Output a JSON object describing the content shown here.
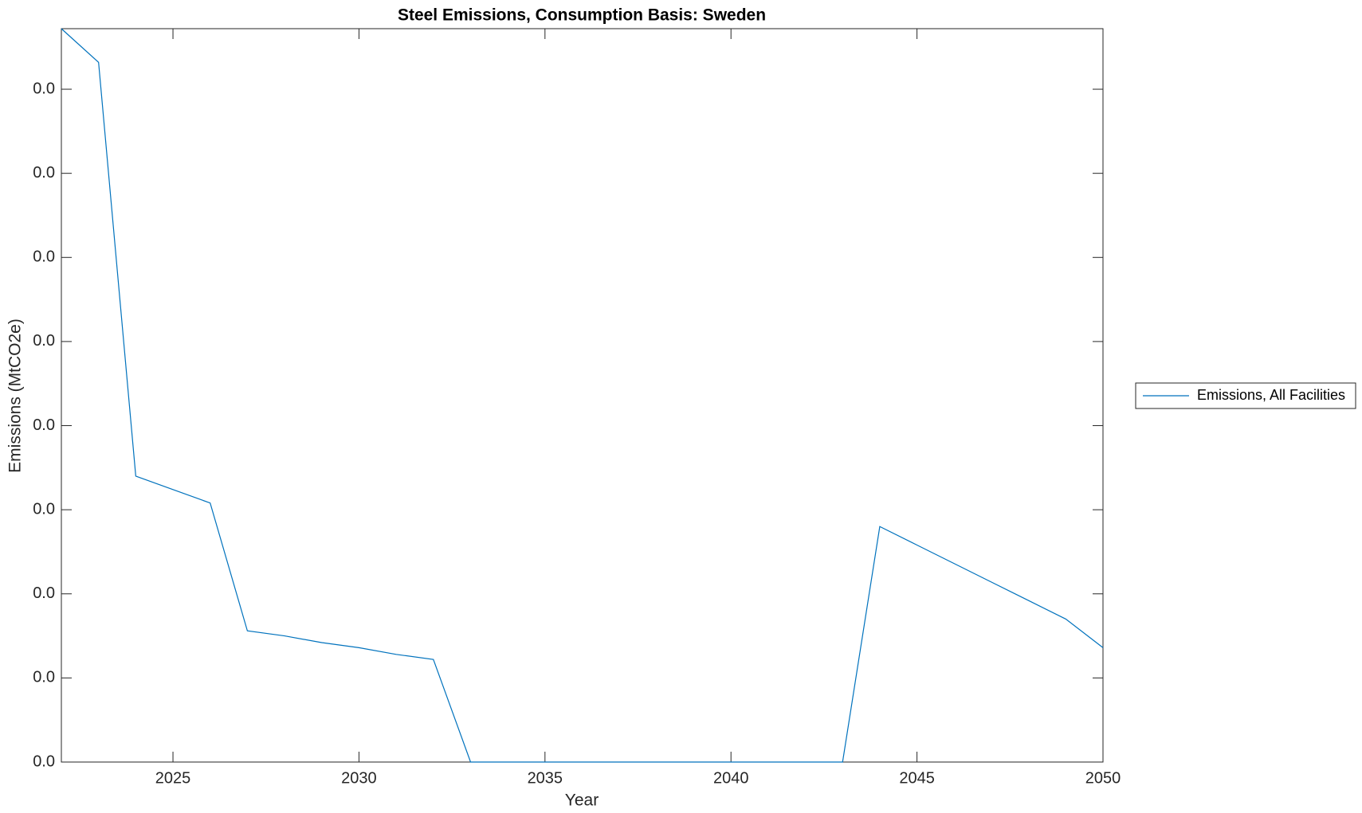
{
  "chart_data": {
    "type": "line",
    "title": "Steel Emissions, Consumption Basis: Sweden",
    "xlabel": "Year",
    "ylabel": "Emissions (MtCO2e)",
    "x": [
      2022,
      2023,
      2024,
      2025,
      2026,
      2027,
      2028,
      2029,
      2030,
      2031,
      2032,
      2033,
      2034,
      2035,
      2036,
      2037,
      2038,
      2039,
      2040,
      2041,
      2042,
      2043,
      2044,
      2045,
      2046,
      2047,
      2048,
      2049,
      2050
    ],
    "series": [
      {
        "name": "Emissions, All Facilities",
        "color": "#0072bd",
        "values": [
          0.0436,
          0.0416,
          0.017,
          0.0162,
          0.0154,
          0.0078,
          0.0075,
          0.0071,
          0.0068,
          0.0064,
          0.0061,
          0,
          0,
          0,
          0,
          0,
          0,
          0,
          0,
          0,
          0,
          0,
          0.014,
          0.0129,
          0.0118,
          0.0107,
          0.0096,
          0.0085,
          0.0068
        ]
      }
    ],
    "xlim": [
      2022,
      2050
    ],
    "xticks": [
      2025,
      2030,
      2035,
      2040,
      2045,
      2050
    ],
    "ylim": [
      0,
      0.0436
    ],
    "yticks": [
      {
        "value": 0,
        "label": "0.0"
      },
      {
        "value": 0.005,
        "label": "0.0"
      },
      {
        "value": 0.01,
        "label": "0.0"
      },
      {
        "value": 0.015,
        "label": "0.0"
      },
      {
        "value": 0.02,
        "label": "0.0"
      },
      {
        "value": 0.025,
        "label": "0.0"
      },
      {
        "value": 0.03,
        "label": "0.0"
      },
      {
        "value": 0.035,
        "label": "0.0"
      },
      {
        "value": 0.04,
        "label": "0.0"
      }
    ],
    "grid": false,
    "legend": "outside-right"
  }
}
